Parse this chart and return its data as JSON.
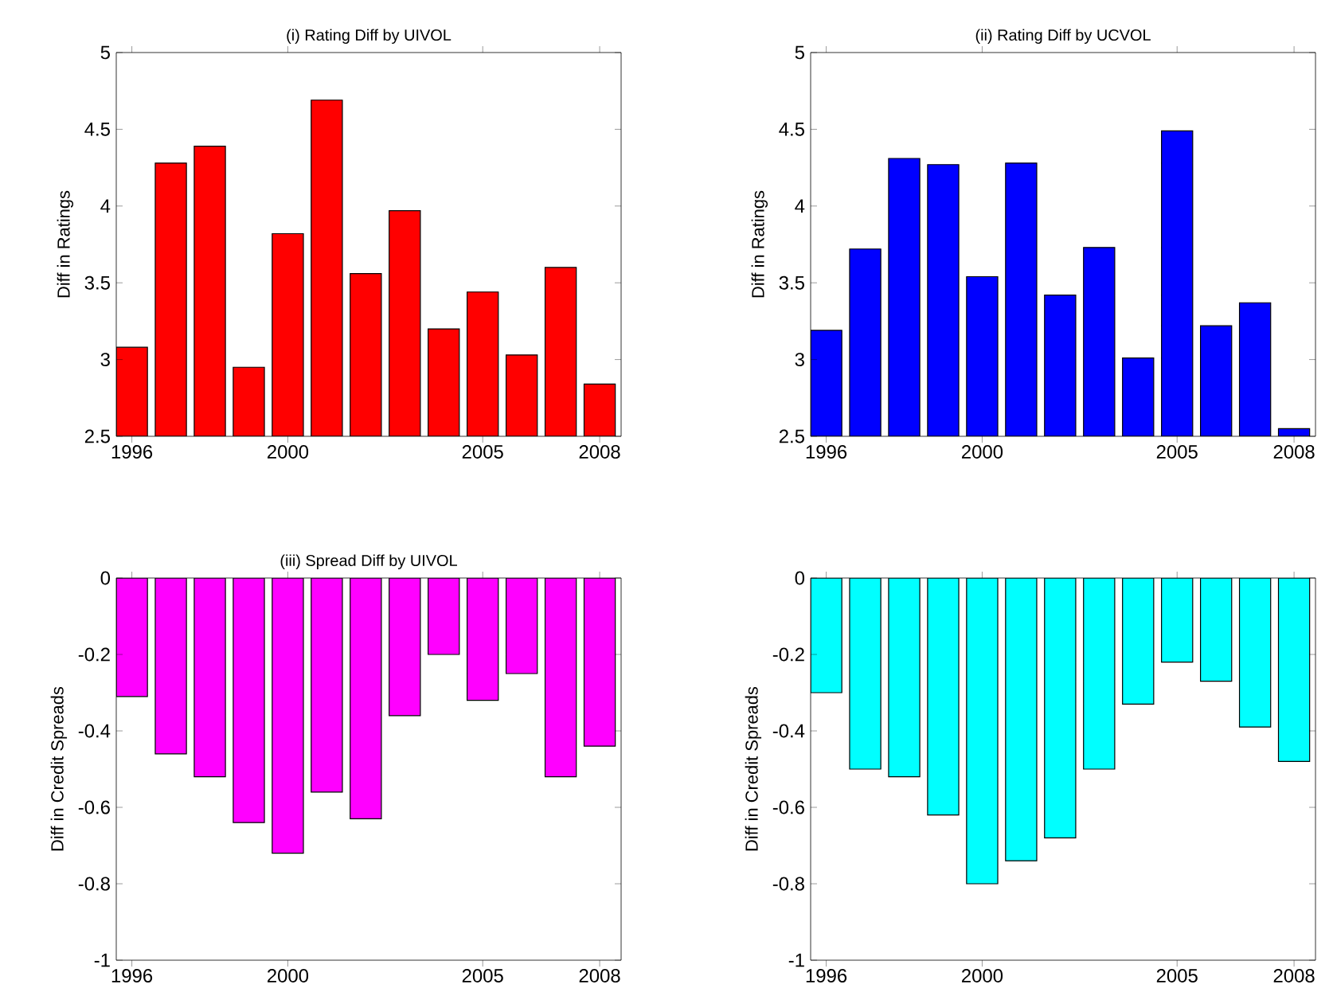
{
  "chart_data": [
    {
      "type": "bar",
      "title": "(i) Rating Diff by UIVOL",
      "ylabel": "Diff in Ratings",
      "x": [
        1996,
        1997,
        1998,
        1999,
        2000,
        2001,
        2002,
        2003,
        2004,
        2005,
        2006,
        2007,
        2008
      ],
      "values": [
        3.08,
        4.28,
        4.39,
        2.95,
        3.82,
        4.69,
        3.56,
        3.97,
        3.2,
        3.44,
        3.03,
        3.6,
        2.84
      ],
      "color": "#ff0000",
      "xlim": [
        1995.6,
        2008.55
      ],
      "xticks": [
        1996,
        2000,
        2005,
        2008
      ],
      "ylim": [
        2.5,
        5
      ],
      "yticks": [
        2.5,
        3,
        3.5,
        4,
        4.5,
        5
      ]
    },
    {
      "type": "bar",
      "title": "(ii) Rating Diff by UCVOL",
      "ylabel": "Diff in Ratings",
      "x": [
        1996,
        1997,
        1998,
        1999,
        2000,
        2001,
        2002,
        2003,
        2004,
        2005,
        2006,
        2007,
        2008
      ],
      "values": [
        3.19,
        3.72,
        4.31,
        4.27,
        3.54,
        4.28,
        3.42,
        3.73,
        3.01,
        4.49,
        3.22,
        3.37,
        2.55
      ],
      "color": "#0000ff",
      "xlim": [
        1995.6,
        2008.55
      ],
      "xticks": [
        1996,
        2000,
        2005,
        2008
      ],
      "ylim": [
        2.5,
        5
      ],
      "yticks": [
        2.5,
        3,
        3.5,
        4,
        4.5,
        5
      ]
    },
    {
      "type": "bar",
      "title": "(iii) Spread Diff by UIVOL",
      "ylabel": "Diff in Credit Spreads",
      "x": [
        1996,
        1997,
        1998,
        1999,
        2000,
        2001,
        2002,
        2003,
        2004,
        2005,
        2006,
        2007,
        2008
      ],
      "values": [
        -0.31,
        -0.46,
        -0.52,
        -0.64,
        -0.72,
        -0.56,
        -0.63,
        -0.36,
        -0.2,
        -0.32,
        -0.25,
        -0.52,
        -0.44
      ],
      "color": "#ff00ff",
      "xlim": [
        1995.6,
        2008.55
      ],
      "xticks": [
        1996,
        2000,
        2005,
        2008
      ],
      "ylim": [
        -1,
        0
      ],
      "yticks": [
        -1,
        -0.8,
        -0.6,
        -0.4,
        -0.2,
        0
      ]
    },
    {
      "type": "bar",
      "ylabel": "Diff in Credit Spreads",
      "x": [
        1996,
        1997,
        1998,
        1999,
        2000,
        2001,
        2002,
        2003,
        2004,
        2005,
        2006,
        2007,
        2008
      ],
      "values": [
        -0.3,
        -0.5,
        -0.52,
        -0.62,
        -0.8,
        -0.74,
        -0.68,
        -0.5,
        -0.33,
        -0.22,
        -0.27,
        -0.39,
        -0.48
      ],
      "color": "#00ffff",
      "xlim": [
        1995.6,
        2008.55
      ],
      "xticks": [
        1996,
        2000,
        2005,
        2008
      ],
      "ylim": [
        -1,
        0
      ],
      "yticks": [
        -1,
        -0.8,
        -0.6,
        -0.4,
        -0.2,
        0
      ]
    }
  ]
}
